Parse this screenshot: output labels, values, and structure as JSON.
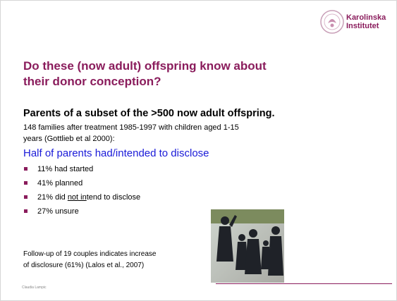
{
  "logo": {
    "lines": [
      "Karolinska",
      "Institutet"
    ]
  },
  "title_lines": [
    "Do these (now adult) offspring know about",
    "their donor conception?"
  ],
  "subtitle": "Parents of a subset of the >500 now adult offspring.",
  "body_lines": [
    "148 families after treatment 1985-1997 with children aged 1-15",
    "years (Gottlieb et al 2000):"
  ],
  "heading": "Half of parents had/intended to disclose",
  "bullets": [
    {
      "text": "11% had started"
    },
    {
      "text": "41% planned"
    },
    {
      "before": "21% did ",
      "underlined": "not in",
      "after": "tend to disclose"
    },
    {
      "text": "27% unsure"
    }
  ],
  "followup_lines": [
    "Follow-up of 19 couples indicates increase",
    "of disclosure (61%) (Lalos et al., 2007)"
  ],
  "footer": "Claudia Lampic"
}
